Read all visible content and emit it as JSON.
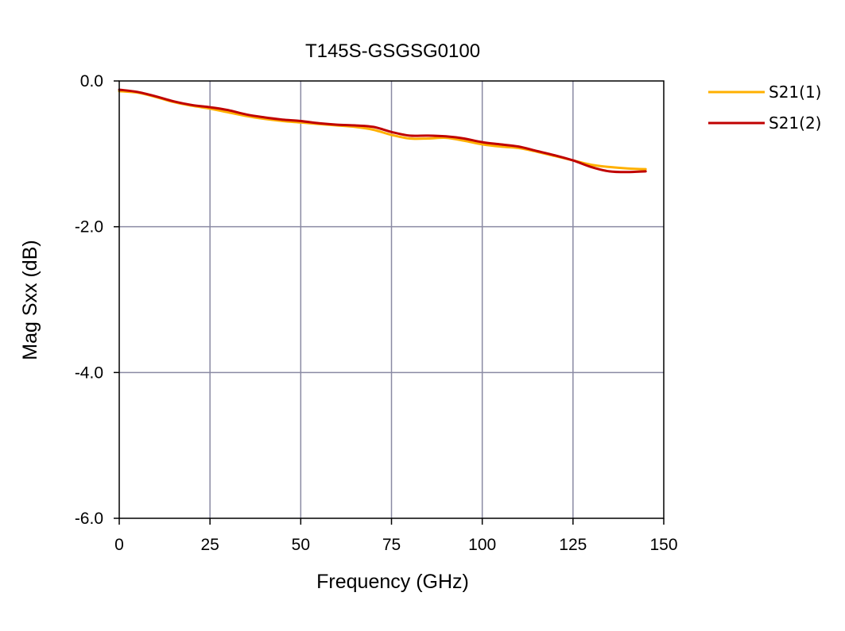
{
  "chart_data": {
    "type": "line",
    "title": "T145S-GSGSG0100",
    "xlabel": "Frequency (GHz)",
    "ylabel": "Mag Sxx (dB)",
    "xlim": [
      0,
      150
    ],
    "ylim": [
      -6.0,
      0.0
    ],
    "x_ticks": [
      0,
      25,
      50,
      75,
      100,
      125,
      150
    ],
    "x_tick_labels": [
      "0",
      "25",
      "50",
      "75",
      "100",
      "125",
      "150"
    ],
    "y_ticks": [
      0.0,
      -2.0,
      -4.0,
      -6.0
    ],
    "y_tick_labels": [
      "0.0",
      "-2.0",
      "-4.0",
      "-6.0"
    ],
    "grid": true,
    "legend_position": "right",
    "series": [
      {
        "name": "S21(1)",
        "color": "#FFB000",
        "x": [
          0,
          5,
          10,
          15,
          20,
          25,
          30,
          35,
          40,
          45,
          50,
          55,
          60,
          65,
          70,
          75,
          80,
          85,
          90,
          95,
          100,
          105,
          110,
          115,
          120,
          125,
          130,
          135,
          140,
          145
        ],
        "y": [
          -0.14,
          -0.16,
          -0.22,
          -0.29,
          -0.34,
          -0.38,
          -0.43,
          -0.48,
          -0.52,
          -0.55,
          -0.57,
          -0.59,
          -0.61,
          -0.63,
          -0.67,
          -0.74,
          -0.79,
          -0.79,
          -0.78,
          -0.82,
          -0.87,
          -0.9,
          -0.92,
          -0.97,
          -1.03,
          -1.09,
          -1.15,
          -1.18,
          -1.2,
          -1.21
        ]
      },
      {
        "name": "S21(2)",
        "color": "#C00000",
        "x": [
          0,
          5,
          10,
          15,
          20,
          25,
          30,
          35,
          40,
          45,
          50,
          55,
          60,
          65,
          70,
          75,
          80,
          85,
          90,
          95,
          100,
          105,
          110,
          115,
          120,
          125,
          130,
          135,
          140,
          145
        ],
        "y": [
          -0.12,
          -0.15,
          -0.21,
          -0.28,
          -0.33,
          -0.36,
          -0.4,
          -0.46,
          -0.5,
          -0.53,
          -0.55,
          -0.58,
          -0.6,
          -0.61,
          -0.63,
          -0.7,
          -0.75,
          -0.75,
          -0.76,
          -0.79,
          -0.84,
          -0.87,
          -0.9,
          -0.96,
          -1.02,
          -1.09,
          -1.18,
          -1.24,
          -1.25,
          -1.24
        ]
      }
    ]
  }
}
